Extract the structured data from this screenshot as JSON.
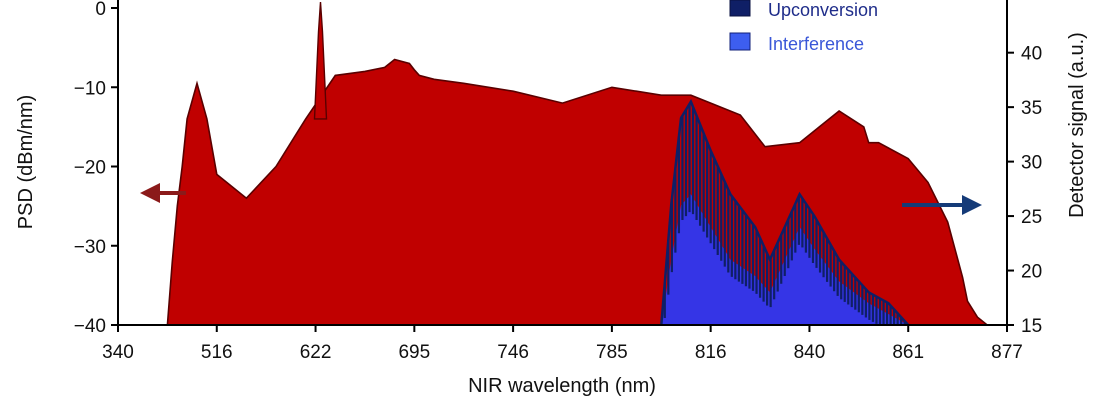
{
  "chart_data": {
    "type": "area",
    "xlabel": "NIR wavelength (nm)",
    "ylabel_left": "PSD (dBm/nm)",
    "ylabel_right": "Detector signal (a.u.)",
    "x_ticks": [
      "340",
      "516",
      "622",
      "695",
      "746",
      "785",
      "816",
      "840",
      "861",
      "877"
    ],
    "y_left_ticks": [
      0,
      -10,
      -20,
      -30,
      -40
    ],
    "y_right_ticks": [
      15,
      20,
      25,
      30,
      35,
      40
    ],
    "y_left_range": [
      -40,
      0
    ],
    "y_right_range": [
      15,
      43
    ],
    "grid": false,
    "legend_position": "top-right",
    "colors": {
      "psd_fill": "#c00000",
      "psd_line": "#5a0000",
      "upconversion": "#0f1f66",
      "interference": "#3535e6",
      "left_arrow": "#8b1a1a",
      "right_arrow": "#153b78"
    },
    "series": [
      {
        "name": "",
        "axis": "left",
        "unit": "dBm/nm",
        "x_tick_index": [
          0.5,
          0.55,
          0.6,
          0.65,
          0.7,
          0.8,
          0.9,
          1.0,
          1.3,
          1.6,
          1.9,
          2.2,
          2.5,
          2.7,
          2.8,
          2.95,
          3.0,
          3.05,
          3.2,
          3.5,
          4.0,
          4.5,
          5.0,
          5.5,
          5.8,
          6.0,
          6.3,
          6.55,
          6.9,
          7.1,
          7.3,
          7.55,
          7.6,
          7.7,
          8.0,
          8.2,
          8.4,
          8.55,
          8.6,
          8.7,
          8.8,
          9.0
        ],
        "values": [
          -40,
          -32,
          -25,
          -20,
          -14,
          -9.5,
          -14,
          -21,
          -24,
          -20,
          -14,
          -8.5,
          -8,
          -7.5,
          -6.5,
          -7,
          -7.8,
          -8.5,
          -9,
          -9.5,
          -10.5,
          -12,
          -10,
          -11,
          -11,
          -12,
          -13.5,
          -17.5,
          -17,
          -15,
          -13,
          -15,
          -17,
          -17,
          -19,
          -22,
          -27,
          -34,
          -37,
          -39,
          -40,
          -40
        ]
      },
      {
        "name": "Upconversion",
        "axis": "right",
        "unit": "a.u.",
        "x_tick_index": [
          5.5,
          5.6,
          5.7,
          5.8,
          6.0,
          6.2,
          6.45,
          6.6,
          6.75,
          6.9,
          7.05,
          7.3,
          7.6,
          7.8,
          8.0
        ],
        "values": [
          15,
          26,
          34,
          35.5,
          31,
          27,
          24,
          21,
          24,
          27,
          25,
          21,
          18,
          17,
          15
        ]
      },
      {
        "name": "Interference",
        "axis": "right",
        "unit": "a.u.",
        "x_tick_index": [
          5.5,
          5.6,
          5.7,
          5.8,
          6.0,
          6.2,
          6.45,
          6.6,
          6.75,
          6.9,
          7.05,
          7.3,
          7.6,
          7.8,
          8.0
        ],
        "values": [
          15,
          21,
          26,
          27,
          24,
          21,
          19.5,
          18,
          21,
          24,
          22,
          19,
          17,
          16,
          15
        ]
      }
    ],
    "legend": [
      "Upconversion",
      "Interference"
    ]
  }
}
